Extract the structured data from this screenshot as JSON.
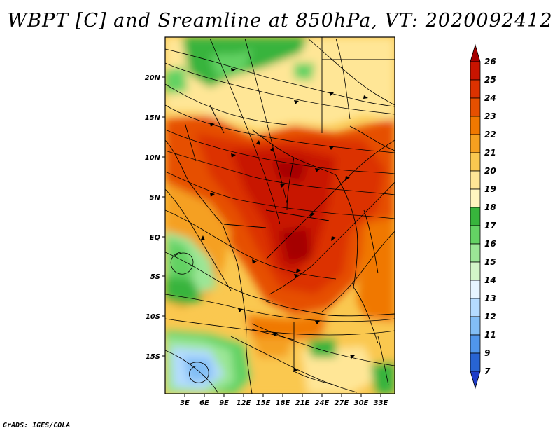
{
  "title": "WBPT [C] and Sreamline at 850hPa, VT: 2020092412",
  "credit": "GrADS: IGES/COLA",
  "map": {
    "lat_labels": [
      "20N",
      "15N",
      "10N",
      "5N",
      "EQ",
      "5S",
      "10S",
      "15S"
    ],
    "lon_labels": [
      "3E",
      "6E",
      "9E",
      "12E",
      "15E",
      "18E",
      "21E",
      "24E",
      "27E",
      "30E",
      "33E"
    ],
    "lat_range": [
      -19.5,
      24.5
    ],
    "lon_range": [
      0.5,
      33.5
    ],
    "field": "WBPT",
    "units": "C",
    "level": "850hPa",
    "valid_time": "2020092412"
  },
  "colorbar": {
    "levels": [
      "26",
      "25",
      "24",
      "23",
      "22",
      "21",
      "20",
      "19",
      "18",
      "17",
      "16",
      "15",
      "14",
      "13",
      "12",
      "11",
      "9",
      "7"
    ],
    "colors": [
      "#a50000",
      "#c81400",
      "#dc3200",
      "#e65000",
      "#f07800",
      "#f5a020",
      "#fac850",
      "#ffe696",
      "#fff5c0",
      "#37b43c",
      "#64d264",
      "#9be696",
      "#d2f5c8",
      "#e6f5ff",
      "#b4dcff",
      "#82bef5",
      "#5096eb",
      "#2864d2",
      "#1e3cc8"
    ]
  }
}
